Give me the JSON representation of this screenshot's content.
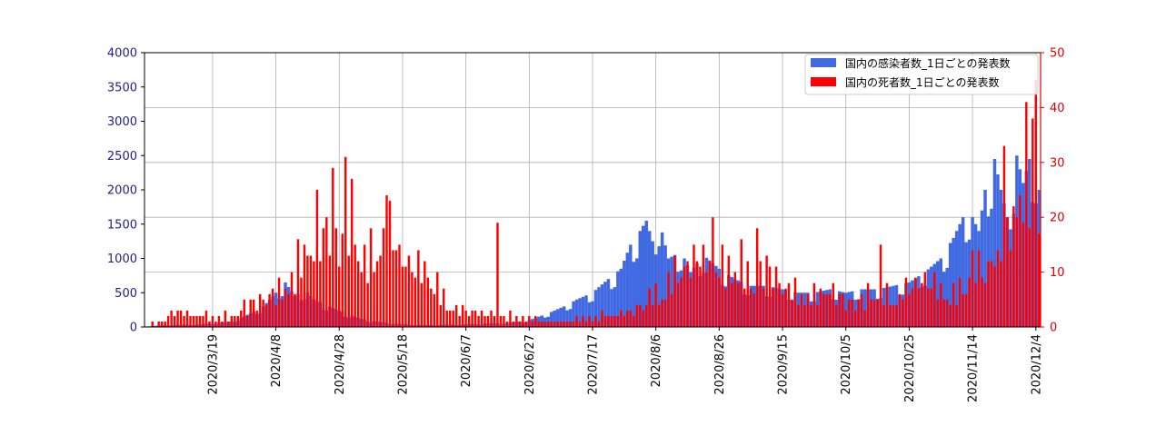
{
  "chart_data": {
    "type": "bar",
    "legend_position": "top-right",
    "grid": true,
    "colors": {
      "cases": "#4169e1",
      "deaths": "#ff0000",
      "left_axis": "#1f1f8a",
      "right_axis": "#e00000"
    },
    "x_range": [
      "2020-02-27",
      "2020-12-05"
    ],
    "x_tick_labels": [
      "2020/3/19",
      "2020/4/8",
      "2020/4/28",
      "2020/5/18",
      "2020/6/7",
      "2020/6/27",
      "2020/7/17",
      "2020/8/6",
      "2020/8/26",
      "2020/9/15",
      "2020/10/5",
      "2020/10/25",
      "2020/11/14",
      "2020/12/4"
    ],
    "x_ticks": [
      "2020-03-19",
      "2020-04-08",
      "2020-04-28",
      "2020-05-18",
      "2020-06-07",
      "2020-06-27",
      "2020-07-17",
      "2020-08-06",
      "2020-08-26",
      "2020-09-15",
      "2020-10-05",
      "2020-10-25",
      "2020-11-14",
      "2020-12-04"
    ],
    "y_left": {
      "range": [
        0,
        4000
      ],
      "ticks": [
        0,
        500,
        1000,
        1500,
        2000,
        2500,
        3000,
        3500,
        4000
      ]
    },
    "y_right": {
      "range": [
        0,
        50
      ],
      "ticks": [
        0,
        10,
        20,
        30,
        40,
        50
      ]
    },
    "series": [
      {
        "name": "国内の感染者数_1日ごとの発表数",
        "axis": "left",
        "keypoints": [
          [
            "2020-02-27",
            10
          ],
          [
            "2020-03-05",
            30
          ],
          [
            "2020-03-15",
            40
          ],
          [
            "2020-03-25",
            80
          ],
          [
            "2020-03-31",
            200
          ],
          [
            "2020-04-04",
            300
          ],
          [
            "2020-04-08",
            500
          ],
          [
            "2020-04-11",
            650
          ],
          [
            "2020-04-14",
            450
          ],
          [
            "2020-04-17",
            550
          ],
          [
            "2020-04-20",
            400
          ],
          [
            "2020-04-25",
            300
          ],
          [
            "2020-04-30",
            200
          ],
          [
            "2020-05-05",
            120
          ],
          [
            "2020-05-10",
            80
          ],
          [
            "2020-05-15",
            50
          ],
          [
            "2020-05-25",
            30
          ],
          [
            "2020-06-07",
            40
          ],
          [
            "2020-06-20",
            60
          ],
          [
            "2020-06-27",
            100
          ],
          [
            "2020-07-03",
            200
          ],
          [
            "2020-07-08",
            300
          ],
          [
            "2020-07-12",
            400
          ],
          [
            "2020-07-17",
            500
          ],
          [
            "2020-07-22",
            700
          ],
          [
            "2020-07-26",
            850
          ],
          [
            "2020-07-29",
            1200
          ],
          [
            "2020-08-01",
            1400
          ],
          [
            "2020-08-03",
            1550
          ],
          [
            "2020-08-05",
            1250
          ],
          [
            "2020-08-07",
            1570
          ],
          [
            "2020-08-10",
            1000
          ],
          [
            "2020-08-14",
            1100
          ],
          [
            "2020-08-17",
            800
          ],
          [
            "2020-08-21",
            1050
          ],
          [
            "2020-08-26",
            850
          ],
          [
            "2020-08-31",
            700
          ],
          [
            "2020-09-05",
            600
          ],
          [
            "2020-09-10",
            600
          ],
          [
            "2020-09-15",
            550
          ],
          [
            "2020-09-20",
            500
          ],
          [
            "2020-09-25",
            500
          ],
          [
            "2020-09-30",
            550
          ],
          [
            "2020-10-05",
            500
          ],
          [
            "2020-10-10",
            550
          ],
          [
            "2020-10-15",
            550
          ],
          [
            "2020-10-20",
            600
          ],
          [
            "2020-10-25",
            650
          ],
          [
            "2020-10-30",
            800
          ],
          [
            "2020-11-04",
            1000
          ],
          [
            "2020-11-08",
            1300
          ],
          [
            "2020-11-11",
            1600
          ],
          [
            "2020-11-13",
            1700
          ],
          [
            "2020-11-16",
            1400
          ],
          [
            "2020-11-18",
            2000
          ],
          [
            "2020-11-21",
            2450
          ],
          [
            "2020-11-23",
            2000
          ],
          [
            "2020-11-25",
            1600
          ],
          [
            "2020-11-28",
            2500
          ],
          [
            "2020-11-30",
            2100
          ],
          [
            "2020-12-02",
            2450
          ],
          [
            "2020-12-04",
            2400
          ],
          [
            "2020-12-05",
            2000
          ]
        ]
      },
      {
        "name": "国内の死者数_1日ごとの発表数",
        "axis": "right",
        "keypoints": [
          [
            "2020-02-27",
            0
          ],
          [
            "2020-03-03",
            1
          ],
          [
            "2020-03-06",
            3
          ],
          [
            "2020-03-15",
            2
          ],
          [
            "2020-03-25",
            2
          ],
          [
            "2020-04-01",
            5
          ],
          [
            "2020-04-08",
            6
          ],
          [
            "2020-04-14",
            10
          ],
          [
            "2020-04-17",
            15
          ],
          [
            "2020-04-20",
            15
          ],
          [
            "2020-04-24",
            18
          ],
          [
            "2020-04-28",
            17
          ],
          [
            "2020-05-01",
            22
          ],
          [
            "2020-05-03",
            20
          ],
          [
            "2020-05-06",
            12
          ],
          [
            "2020-05-10",
            15
          ],
          [
            "2020-05-14",
            18
          ],
          [
            "2020-05-18",
            12
          ],
          [
            "2020-05-22",
            11
          ],
          [
            "2020-05-26",
            11
          ],
          [
            "2020-05-30",
            6
          ],
          [
            "2020-06-05",
            3
          ],
          [
            "2020-06-15",
            2
          ],
          [
            "2020-06-25",
            2
          ],
          [
            "2020-07-05",
            1
          ],
          [
            "2020-07-20",
            2
          ],
          [
            "2020-07-30",
            3
          ],
          [
            "2020-08-05",
            6
          ],
          [
            "2020-08-10",
            8
          ],
          [
            "2020-08-14",
            11
          ],
          [
            "2020-08-19",
            13
          ],
          [
            "2020-08-24",
            12
          ],
          [
            "2020-08-28",
            11
          ],
          [
            "2020-09-01",
            13
          ],
          [
            "2020-09-05",
            9
          ],
          [
            "2020-09-10",
            11
          ],
          [
            "2020-09-15",
            8
          ],
          [
            "2020-09-20",
            6
          ],
          [
            "2020-09-25",
            6
          ],
          [
            "2020-09-30",
            7
          ],
          [
            "2020-10-05",
            5
          ],
          [
            "2020-10-10",
            5
          ],
          [
            "2020-10-15",
            7
          ],
          [
            "2020-10-20",
            5
          ],
          [
            "2020-10-25",
            7
          ],
          [
            "2020-10-30",
            9
          ],
          [
            "2020-11-04",
            7
          ],
          [
            "2020-11-09",
            6
          ],
          [
            "2020-11-14",
            12
          ],
          [
            "2020-11-18",
            10
          ],
          [
            "2020-11-21",
            13
          ],
          [
            "2020-11-24",
            12
          ],
          [
            "2020-11-27",
            22
          ],
          [
            "2020-11-30",
            28
          ],
          [
            "2020-12-02",
            30
          ],
          [
            "2020-12-04",
            36
          ],
          [
            "2020-12-05",
            22
          ]
        ],
        "spikes": [
          [
            "2020-04-21",
            25
          ],
          [
            "2020-04-26",
            29
          ],
          [
            "2020-04-30",
            31
          ],
          [
            "2020-05-13",
            24
          ],
          [
            "2020-06-17",
            19
          ],
          [
            "2020-08-24",
            20
          ],
          [
            "2020-09-07",
            18
          ],
          [
            "2020-10-16",
            15
          ],
          [
            "2020-11-24",
            33
          ],
          [
            "2020-12-01",
            41
          ],
          [
            "2020-12-04",
            45
          ]
        ]
      }
    ]
  }
}
